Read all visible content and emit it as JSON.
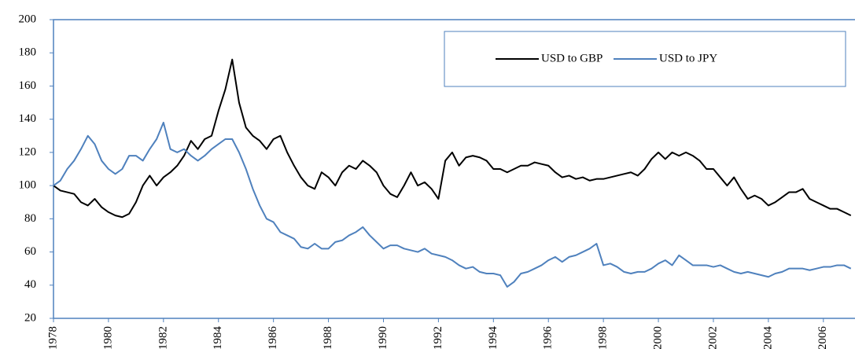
{
  "chart_data": {
    "type": "line",
    "x": [
      1978,
      1978.25,
      1978.5,
      1978.75,
      1979,
      1979.25,
      1979.5,
      1979.75,
      1980,
      1980.25,
      1980.5,
      1980.75,
      1981,
      1981.25,
      1981.5,
      1981.75,
      1982,
      1982.25,
      1982.5,
      1982.75,
      1983,
      1983.25,
      1983.5,
      1983.75,
      1984,
      1984.25,
      1984.5,
      1984.75,
      1985,
      1985.25,
      1985.5,
      1985.75,
      1986,
      1986.25,
      1986.5,
      1986.75,
      1987,
      1987.25,
      1987.5,
      1987.75,
      1988,
      1988.25,
      1988.5,
      1988.75,
      1989,
      1989.25,
      1989.5,
      1989.75,
      1990,
      1990.25,
      1990.5,
      1990.75,
      1991,
      1991.25,
      1991.5,
      1991.75,
      1992,
      1992.25,
      1992.5,
      1992.75,
      1993,
      1993.25,
      1993.5,
      1993.75,
      1994,
      1994.25,
      1994.5,
      1994.75,
      1995,
      1995.25,
      1995.5,
      1995.75,
      1996,
      1996.25,
      1996.5,
      1996.75,
      1997,
      1997.25,
      1997.5,
      1997.75,
      1998,
      1998.25,
      1998.5,
      1998.75,
      1999,
      1999.25,
      1999.5,
      1999.75,
      2000,
      2000.25,
      2000.5,
      2000.75,
      2001,
      2001.25,
      2001.5,
      2001.75,
      2002,
      2002.25,
      2002.5,
      2002.75,
      2003,
      2003.25,
      2003.5,
      2003.75,
      2004,
      2004.25,
      2004.5,
      2004.75,
      2005,
      2005.25,
      2005.5,
      2005.75,
      2006,
      2006.25,
      2006.5,
      2006.75,
      2007
    ],
    "series": [
      {
        "name": "USD to GBP",
        "color": "#000000",
        "values": [
          100,
          97,
          96,
          95,
          90,
          88,
          92,
          87,
          84,
          82,
          81,
          83,
          90,
          100,
          106,
          100,
          105,
          108,
          112,
          118,
          127,
          122,
          128,
          130,
          145,
          158,
          176,
          150,
          135,
          130,
          127,
          122,
          128,
          130,
          120,
          112,
          105,
          100,
          98,
          108,
          105,
          100,
          108,
          112,
          110,
          115,
          112,
          108,
          100,
          95,
          93,
          100,
          108,
          100,
          102,
          98,
          92,
          115,
          120,
          112,
          117,
          118,
          117,
          115,
          110,
          110,
          108,
          110,
          112,
          112,
          114,
          113,
          112,
          108,
          105,
          106,
          104,
          105,
          103,
          104,
          104,
          105,
          106,
          107,
          108,
          106,
          110,
          116,
          120,
          116,
          120,
          118,
          120,
          118,
          115,
          110,
          110,
          105,
          100,
          105,
          98,
          92,
          94,
          92,
          88,
          90,
          93,
          96,
          96,
          98,
          92,
          90,
          88,
          86,
          86,
          84,
          82
        ]
      },
      {
        "name": "USD to JPY",
        "color": "#4f81bd",
        "values": [
          100,
          103,
          110,
          115,
          122,
          130,
          125,
          115,
          110,
          107,
          110,
          118,
          118,
          115,
          122,
          128,
          138,
          122,
          120,
          122,
          118,
          115,
          118,
          122,
          125,
          128,
          128,
          120,
          110,
          98,
          88,
          80,
          78,
          72,
          70,
          68,
          63,
          62,
          65,
          62,
          62,
          66,
          67,
          70,
          72,
          75,
          70,
          66,
          62,
          64,
          64,
          62,
          61,
          60,
          62,
          59,
          58,
          57,
          55,
          52,
          50,
          51,
          48,
          47,
          47,
          46,
          39,
          42,
          47,
          48,
          50,
          52,
          55,
          57,
          54,
          57,
          58,
          60,
          62,
          65,
          52,
          53,
          51,
          48,
          47,
          48,
          48,
          50,
          53,
          55,
          52,
          58,
          55,
          52,
          52,
          52,
          51,
          52,
          50,
          48,
          47,
          48,
          47,
          46,
          45,
          47,
          48,
          50,
          50,
          50,
          49,
          50,
          51,
          51,
          52,
          52,
          50
        ]
      }
    ],
    "xlim": [
      1978,
      2007.15
    ],
    "xticks": [
      1978,
      1980,
      1982,
      1984,
      1986,
      1988,
      1990,
      1992,
      1994,
      1996,
      1998,
      2000,
      2002,
      2004,
      2006
    ],
    "ylim": [
      20,
      200
    ],
    "yticks": [
      20,
      40,
      60,
      80,
      100,
      120,
      140,
      160,
      180,
      200
    ],
    "legend": "top-right"
  }
}
